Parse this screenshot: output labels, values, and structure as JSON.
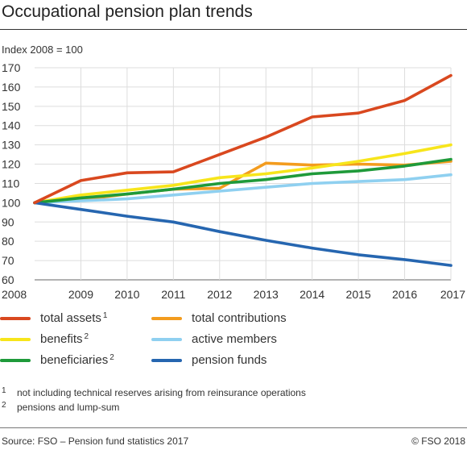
{
  "title": "Occupational pension plan trends",
  "index_label": "Index 2008 = 100",
  "chart_data": {
    "type": "line",
    "x": [
      2008,
      2009,
      2010,
      2011,
      2012,
      2013,
      2014,
      2015,
      2016,
      2017
    ],
    "ylim": [
      60,
      170
    ],
    "yticks": [
      60,
      70,
      80,
      90,
      100,
      110,
      120,
      130,
      140,
      150,
      160,
      170
    ],
    "grid": true,
    "legend_position": "bottom",
    "series": [
      {
        "name": "total contributions",
        "color": "#f39c1e",
        "values": [
          100,
          101.5,
          104.5,
          107,
          107.5,
          120.5,
          119.5,
          120,
          119.5,
          121.5
        ]
      },
      {
        "name": "benefits",
        "color": "#f7e51b",
        "values": [
          100,
          104,
          106.5,
          109,
          113,
          115,
          118,
          121.5,
          125.5,
          130
        ]
      },
      {
        "name": "active members",
        "color": "#8fd0f0",
        "values": [
          100,
          101,
          102,
          104,
          106,
          108,
          110,
          111,
          112,
          114.5
        ]
      },
      {
        "name": "beneficiaries",
        "color": "#1f9a3a",
        "values": [
          100,
          102.5,
          104.5,
          107,
          110,
          112,
          115,
          116.5,
          119,
          122.5
        ]
      },
      {
        "name": "pension funds",
        "color": "#2666b0",
        "values": [
          100,
          96.5,
          93,
          90,
          85,
          80.5,
          76.5,
          73,
          70.5,
          67.5
        ]
      },
      {
        "name": "total assets",
        "color": "#d9481f",
        "values": [
          100,
          111.5,
          115.5,
          116,
          125,
          134,
          144.5,
          146.5,
          153,
          166
        ]
      }
    ]
  },
  "legend": [
    {
      "label": "total assets",
      "sup": "1",
      "color": "#d9481f"
    },
    {
      "label": "total contributions",
      "sup": "",
      "color": "#f39c1e"
    },
    {
      "label": "benefits",
      "sup": "2",
      "color": "#f7e51b"
    },
    {
      "label": "active members",
      "sup": "",
      "color": "#8fd0f0"
    },
    {
      "label": "beneficiaries",
      "sup": "2",
      "color": "#1f9a3a"
    },
    {
      "label": "pension funds",
      "sup": "",
      "color": "#2666b0"
    }
  ],
  "footnotes": [
    {
      "mark": "1",
      "text": "not including technical reserves arising from reinsurance operations"
    },
    {
      "mark": "2",
      "text": "pensions and lump-sum"
    }
  ],
  "source": "Source: FSO – Pension fund statistics 2017",
  "copyright": "© FSO 2018"
}
